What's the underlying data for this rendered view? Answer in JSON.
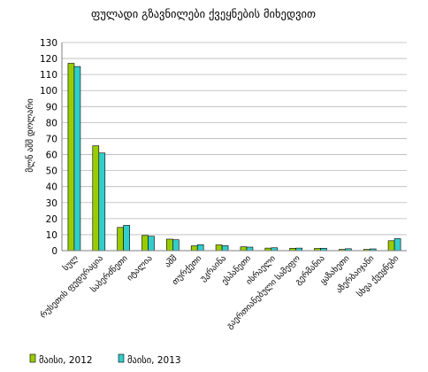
{
  "chart_data": {
    "type": "bar",
    "title": "ფულადი გზავნილები ქვეყნების მიხედვით",
    "ylabel": "მლნ აშშ დოლარი",
    "xlabel": "",
    "ylim": [
      0,
      130
    ],
    "yticks": [
      0,
      10,
      20,
      30,
      40,
      50,
      60,
      70,
      80,
      90,
      100,
      110,
      120,
      130
    ],
    "grid": true,
    "legend_position": "bottom",
    "categories": [
      "სულ",
      "რუსეთის ფედერაცია",
      "საბერძნეთი",
      "იტალია",
      "აშშ",
      "თურქეთი",
      "უკრაინა",
      "ესპანეთი",
      "ისრაელი",
      "გაერთიანებული სამეფო",
      "გერმანია",
      "ყაზახეთი",
      "აზერბაიჯანი",
      "სხვა ქვეყნები"
    ],
    "series": [
      {
        "name": "მაისი, 2012",
        "color": "#99cc00",
        "values": [
          117,
          65.5,
          14.5,
          9.5,
          7.2,
          3.0,
          3.6,
          2.4,
          1.6,
          1.5,
          1.4,
          0.8,
          0.8,
          6.2
        ]
      },
      {
        "name": "მაისი, 2013",
        "color": "#33cccc",
        "values": [
          115,
          61.0,
          15.8,
          9.0,
          6.8,
          3.7,
          3.1,
          2.2,
          1.8,
          1.6,
          1.5,
          1.2,
          1.1,
          7.5
        ]
      }
    ]
  }
}
